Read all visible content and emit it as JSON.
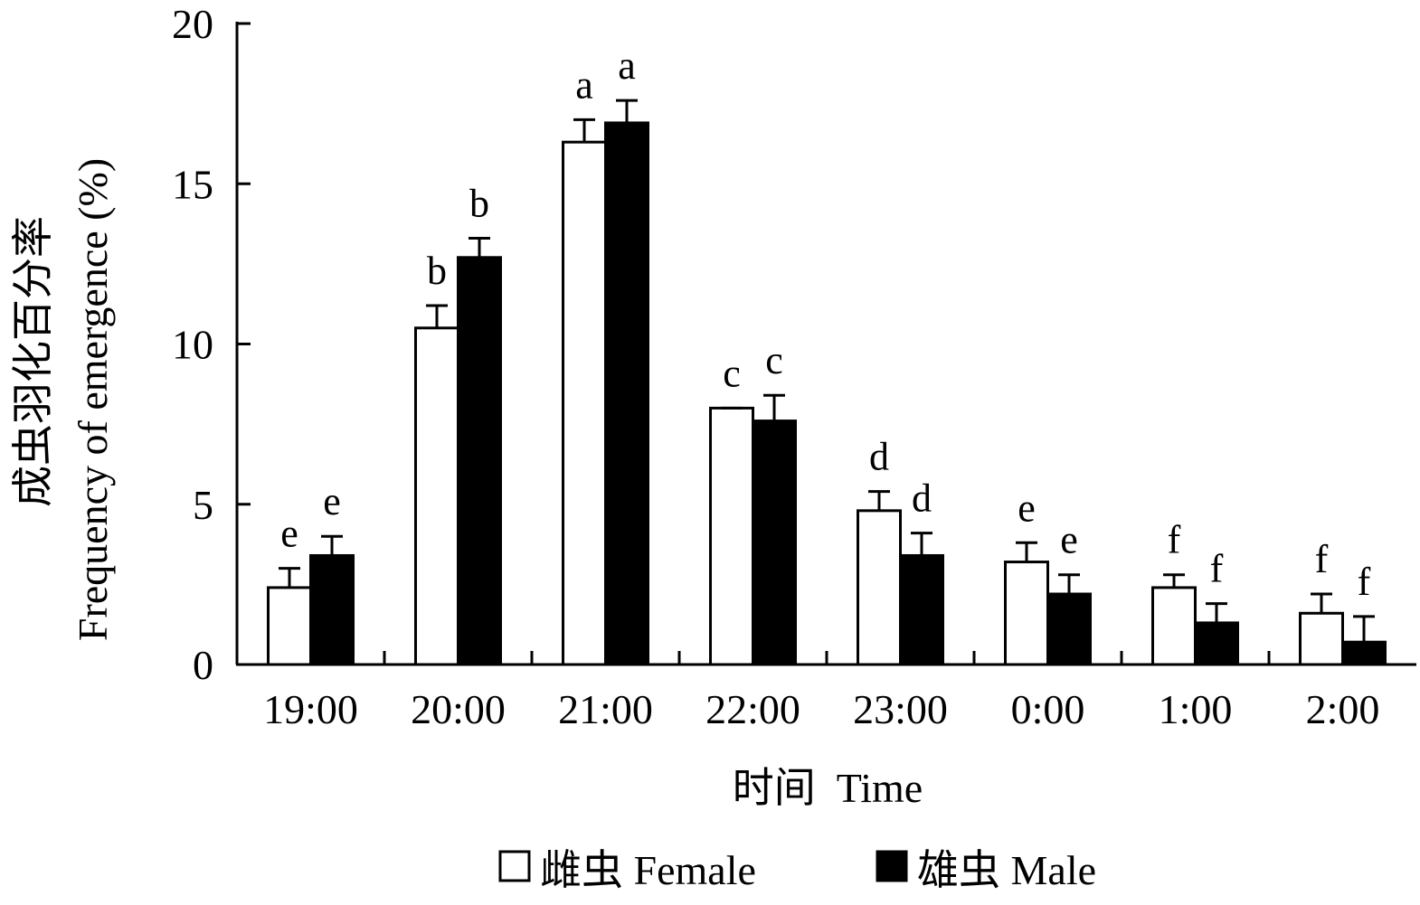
{
  "chart_data": {
    "type": "bar",
    "categories": [
      "19:00",
      "20:00",
      "21:00",
      "22:00",
      "23:00",
      "0:00",
      "1:00",
      "2:00"
    ],
    "series": [
      {
        "name": "雌虫 Female",
        "fill": "#ffffff",
        "values": [
          2.4,
          10.5,
          16.3,
          8.0,
          4.8,
          3.2,
          2.4,
          1.6
        ],
        "errors": [
          0.6,
          0.7,
          0.7,
          0.0,
          0.6,
          0.6,
          0.4,
          0.6
        ],
        "labels": [
          "e",
          "b",
          "a",
          "c",
          "d",
          "e",
          "f",
          "f"
        ]
      },
      {
        "name": "雄虫 Male",
        "fill": "#000000",
        "values": [
          3.4,
          12.7,
          16.9,
          7.6,
          3.4,
          2.2,
          1.3,
          0.7
        ],
        "errors": [
          0.6,
          0.6,
          0.7,
          0.8,
          0.7,
          0.6,
          0.6,
          0.8
        ],
        "labels": [
          "e",
          "b",
          "a",
          "c",
          "d",
          "e",
          "f",
          "f"
        ]
      }
    ],
    "ylim": [
      0,
      20
    ],
    "yticks": [
      0,
      5,
      10,
      15,
      20
    ],
    "xlabel": "时间  Time",
    "ylabel_cn": "成虫羽化百分率",
    "ylabel_en": "Frequency of emergence (%)",
    "legend_position": "bottom-center",
    "grid": false
  }
}
